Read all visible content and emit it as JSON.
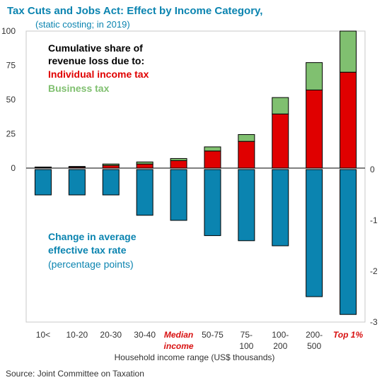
{
  "chart_data": [
    {
      "type": "bar",
      "stacked": true,
      "title": "Tax Cuts and Jobs Act: Effect by Income Category,",
      "subtitle": "(static costing; in 2019)",
      "annotation_title": [
        "Cumulative share of",
        "revenue loss due to:"
      ],
      "xlabel": "Household income range (US$ thousands)",
      "categories": [
        [
          "10<"
        ],
        [
          "10-20"
        ],
        [
          "20-30"
        ],
        [
          "30-40"
        ],
        [
          "Median",
          "income"
        ],
        [
          "50-75"
        ],
        [
          "75-",
          "100"
        ],
        [
          "100-",
          "200"
        ],
        [
          "200-",
          "500"
        ],
        [
          "Top 1%"
        ]
      ],
      "highlight_categories": [
        4,
        9
      ],
      "ylim": [
        0,
        100
      ],
      "yticks": [
        "0",
        "25",
        "50",
        "75",
        "100"
      ],
      "ytick_values": [
        0,
        25,
        50,
        75,
        100
      ],
      "series": [
        {
          "name": "Individual income tax",
          "values": [
            0.5,
            0.7,
            2,
            3,
            5.5,
            12.5,
            19.5,
            39.5,
            57,
            70
          ]
        },
        {
          "name": "Business tax",
          "values": [
            0.3,
            0.5,
            1,
            1.5,
            1.5,
            3,
            5,
            12,
            20,
            30
          ]
        }
      ]
    },
    {
      "type": "bar",
      "title": [
        "Change in average",
        "effective tax rate"
      ],
      "subtitle": "(percentage points)",
      "ylim": [
        -3,
        0
      ],
      "yticks": [
        "0",
        "-1",
        "-2",
        "-3"
      ],
      "ytick_values": [
        0,
        -1,
        -2,
        -3
      ],
      "values": [
        -0.5,
        -0.5,
        -0.5,
        -0.9,
        -1.0,
        -1.3,
        -1.4,
        -1.5,
        -2.5,
        -2.85
      ]
    }
  ],
  "colors": {
    "individual": "#e00000",
    "business": "#80c070",
    "rate": "#0b84b0",
    "title": "#0b84b0",
    "highlight": "#d81010",
    "axis": "#000000",
    "frame": "#c8c8c8",
    "text": "#333333"
  },
  "source": "Source: Joint Committee on Taxation"
}
